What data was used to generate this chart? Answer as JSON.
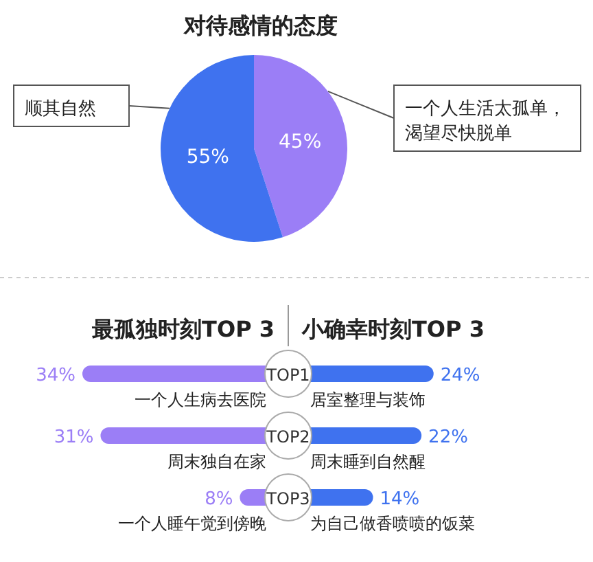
{
  "chart_data": [
    {
      "type": "pie",
      "title": "对待感情的态度",
      "categories": [
        "一个人生活太孤单，渴望尽快脱单",
        "顺其自然"
      ],
      "values": [
        45,
        55
      ],
      "value_labels": [
        "45%",
        "55%"
      ],
      "colors": [
        "#9b7ef6",
        "#3f72ef"
      ]
    },
    {
      "type": "bar",
      "orientation": "horizontal",
      "title": "最孤独时刻TOP 3",
      "categories": [
        "一个人生病去医院",
        "周末独自在家",
        "一个人睡午觉到傍晚"
      ],
      "series": [
        {
          "color": "#9b7ef6",
          "values": [
            34,
            31,
            8
          ],
          "value_labels": [
            "34%",
            "31%",
            "8%"
          ]
        }
      ],
      "annotations": [
        "TOP1",
        "TOP2",
        "TOP3"
      ]
    },
    {
      "type": "bar",
      "orientation": "horizontal",
      "title": "小确幸时刻TOP 3",
      "categories": [
        "居室整理与装饰",
        "周末睡到自然醒",
        "为自己做香喷喷的饭菜"
      ],
      "series": [
        {
          "color": "#3f72ef",
          "values": [
            24,
            22,
            14
          ],
          "value_labels": [
            "24%",
            "22%",
            "14%"
          ]
        }
      ]
    }
  ]
}
